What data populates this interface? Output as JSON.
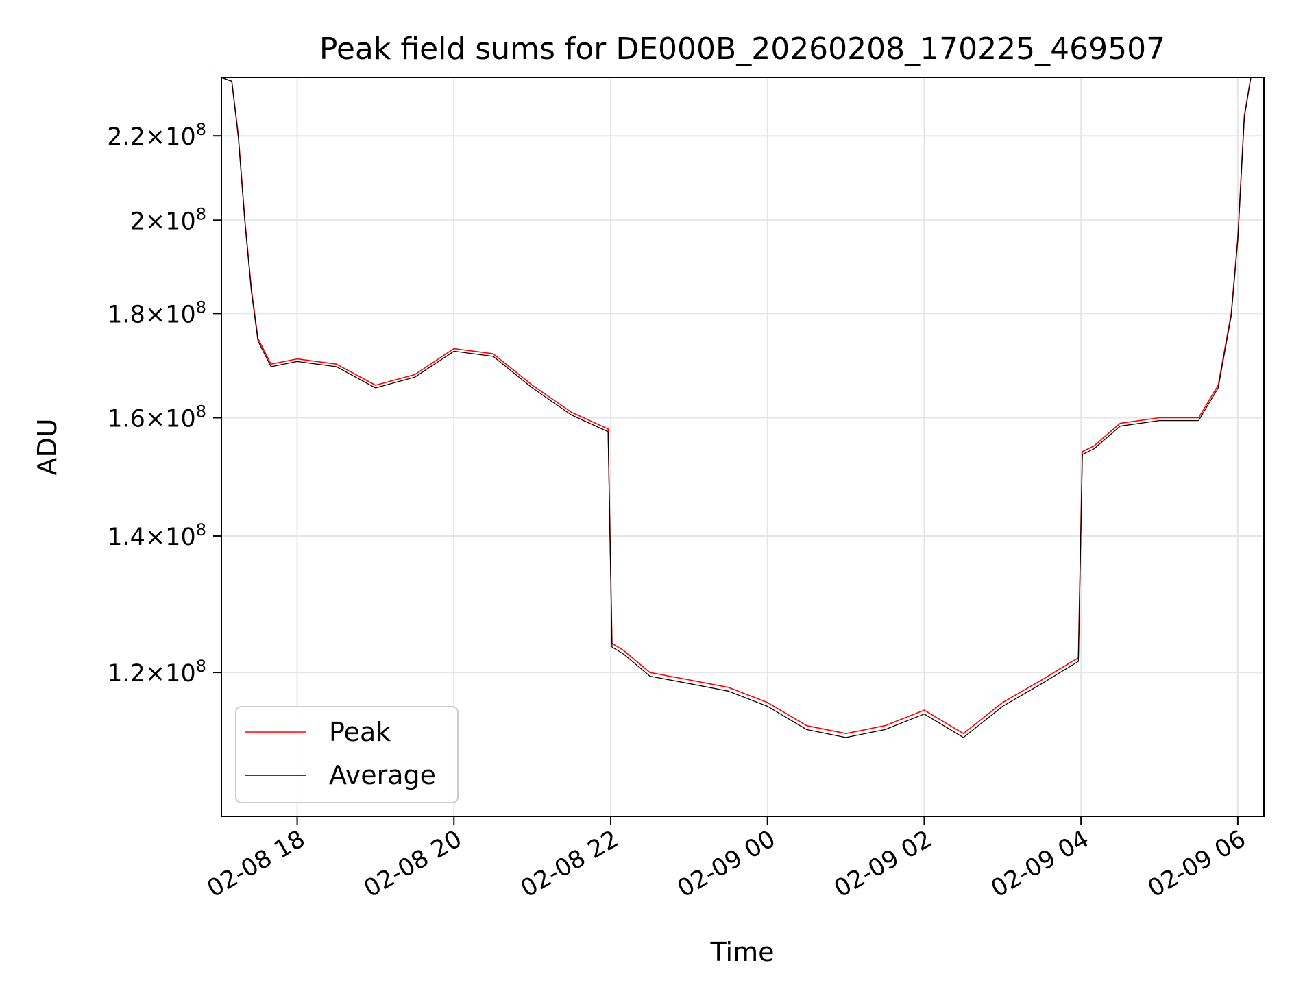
{
  "chart_data": {
    "type": "line",
    "title": "Peak field sums for DE000B_20260208_170225_469507",
    "xlabel": "Time",
    "ylabel": "ADU",
    "y_scale": "log",
    "grid": true,
    "legend_position": "lower-left",
    "x_ticks": [
      {
        "t": "2026-02-08 18:00",
        "label": "02-08 18"
      },
      {
        "t": "2026-02-08 20:00",
        "label": "02-08 20"
      },
      {
        "t": "2026-02-08 22:00",
        "label": "02-08 22"
      },
      {
        "t": "2026-02-09 00:00",
        "label": "02-09 00"
      },
      {
        "t": "2026-02-09 02:00",
        "label": "02-09 02"
      },
      {
        "t": "2026-02-09 04:00",
        "label": "02-09 04"
      },
      {
        "t": "2026-02-09 06:00",
        "label": "02-09 06"
      }
    ],
    "y_ticks": [
      {
        "value": 120000000,
        "mantissa": "1.2",
        "exp": "8"
      },
      {
        "value": 140000000,
        "mantissa": "1.4",
        "exp": "8"
      },
      {
        "value": 160000000,
        "mantissa": "1.6",
        "exp": "8"
      },
      {
        "value": 180000000,
        "mantissa": "1.8",
        "exp": "8"
      },
      {
        "value": 200000000,
        "mantissa": "2",
        "exp": "8"
      },
      {
        "value": 220000000,
        "mantissa": "2.2",
        "exp": "8"
      }
    ],
    "xlim": [
      "2026-02-08 17:02",
      "2026-02-09 06:20"
    ],
    "ylim": [
      102000000,
      235000000
    ],
    "series": [
      {
        "name": "Peak",
        "color": "#ff0000",
        "x": [
          "2026-02-08 17:02",
          "2026-02-08 17:10",
          "2026-02-08 17:15",
          "2026-02-08 17:20",
          "2026-02-08 17:25",
          "2026-02-08 17:30",
          "2026-02-08 17:40",
          "2026-02-08 18:00",
          "2026-02-08 18:30",
          "2026-02-08 19:00",
          "2026-02-08 19:30",
          "2026-02-08 20:00",
          "2026-02-08 20:30",
          "2026-02-08 21:00",
          "2026-02-08 21:30",
          "2026-02-08 21:58",
          "2026-02-08 22:01",
          "2026-02-08 22:10",
          "2026-02-08 22:30",
          "2026-02-08 23:00",
          "2026-02-08 23:30",
          "2026-02-09 00:00",
          "2026-02-09 00:30",
          "2026-02-09 01:00",
          "2026-02-09 01:30",
          "2026-02-09 02:00",
          "2026-02-09 02:30",
          "2026-02-09 03:00",
          "2026-02-09 03:30",
          "2026-02-09 03:58",
          "2026-02-09 04:01",
          "2026-02-09 04:10",
          "2026-02-09 04:30",
          "2026-02-09 05:00",
          "2026-02-09 05:30",
          "2026-02-09 05:45",
          "2026-02-09 05:55",
          "2026-02-09 06:00",
          "2026-02-09 06:05",
          "2026-02-09 06:10"
        ],
        "y": [
          235000000,
          234000000,
          220000000,
          200000000,
          185000000,
          175000000,
          170000000,
          171000000,
          170000000,
          166000000,
          168000000,
          173000000,
          172000000,
          166000000,
          161000000,
          158000000,
          124000000,
          123000000,
          120000000,
          119000000,
          118000000,
          116000000,
          113000000,
          112000000,
          113000000,
          115000000,
          112000000,
          116000000,
          119000000,
          122000000,
          154000000,
          155000000,
          159000000,
          160000000,
          160000000,
          166000000,
          180000000,
          196000000,
          225000000,
          235000000
        ]
      },
      {
        "name": "Average",
        "color": "#000000",
        "x": [
          "2026-02-08 17:02",
          "2026-02-08 17:10",
          "2026-02-08 17:15",
          "2026-02-08 17:20",
          "2026-02-08 17:25",
          "2026-02-08 17:30",
          "2026-02-08 17:40",
          "2026-02-08 18:00",
          "2026-02-08 18:30",
          "2026-02-08 19:00",
          "2026-02-08 19:30",
          "2026-02-08 20:00",
          "2026-02-08 20:30",
          "2026-02-08 21:00",
          "2026-02-08 21:30",
          "2026-02-08 21:58",
          "2026-02-08 22:01",
          "2026-02-08 22:10",
          "2026-02-08 22:30",
          "2026-02-08 23:00",
          "2026-02-08 23:30",
          "2026-02-09 00:00",
          "2026-02-09 00:30",
          "2026-02-09 01:00",
          "2026-02-09 01:30",
          "2026-02-09 02:00",
          "2026-02-09 02:30",
          "2026-02-09 03:00",
          "2026-02-09 03:30",
          "2026-02-09 03:58",
          "2026-02-09 04:01",
          "2026-02-09 04:10",
          "2026-02-09 04:30",
          "2026-02-09 05:00",
          "2026-02-09 05:30",
          "2026-02-09 05:45",
          "2026-02-09 05:55",
          "2026-02-09 06:00",
          "2026-02-09 06:05",
          "2026-02-09 06:10"
        ],
        "y": [
          235000000,
          234000000,
          219500000,
          199500000,
          184500000,
          174500000,
          169500000,
          170500000,
          169500000,
          165500000,
          167500000,
          172500000,
          171500000,
          165500000,
          160500000,
          157500000,
          123500000,
          122500000,
          119500000,
          118500000,
          117500000,
          115500000,
          112500000,
          111500000,
          112500000,
          114500000,
          111500000,
          115500000,
          118500000,
          121500000,
          153500000,
          154500000,
          158500000,
          159500000,
          159500000,
          165500000,
          179500000,
          195500000,
          224500000,
          235000000
        ]
      }
    ]
  }
}
